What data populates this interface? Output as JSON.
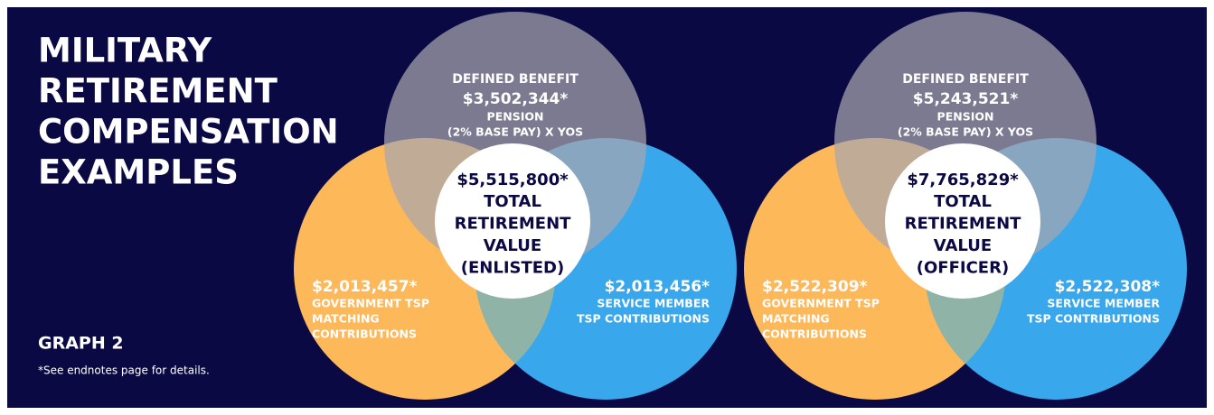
{
  "title": [
    "MILITARY",
    "RETIREMENT",
    "COMPENSATION",
    "EXAMPLES"
  ],
  "graph_label": "GRAPH 2",
  "note": "*See endnotes page for details.",
  "diagrams": [
    {
      "top": {
        "heading": "DEFINED BENEFIT",
        "amount": "$3,502,344*",
        "lines": [
          "PENSION",
          "(2% BASE PAY) X YOS"
        ]
      },
      "left": {
        "amount": "$2,013,457*",
        "lines": [
          "GOVERNMENT TSP",
          "MATCHING",
          "CONTRIBUTIONS"
        ]
      },
      "right": {
        "amount": "$2,013,456*",
        "lines": [
          "SERVICE MEMBER",
          "TSP CONTRIBUTIONS"
        ]
      },
      "center": {
        "amount": "$5,515,800*",
        "lines": [
          "TOTAL",
          "RETIREMENT",
          "VALUE",
          "(ENLISTED)"
        ]
      }
    },
    {
      "top": {
        "heading": "DEFINED BENEFIT",
        "amount": "$5,243,521*",
        "lines": [
          "PENSION",
          "(2% BASE PAY) X YOS"
        ]
      },
      "left": {
        "amount": "$2,522,309*",
        "lines": [
          "GOVERNMENT TSP",
          "MATCHING",
          "CONTRIBUTIONS"
        ]
      },
      "right": {
        "amount": "$2,522,308*",
        "lines": [
          "SERVICE MEMBER",
          "TSP CONTRIBUTIONS"
        ]
      },
      "center": {
        "amount": "$7,765,829*",
        "lines": [
          "TOTAL",
          "RETIREMENT",
          "VALUE",
          "(OFFICER)"
        ]
      }
    }
  ]
}
